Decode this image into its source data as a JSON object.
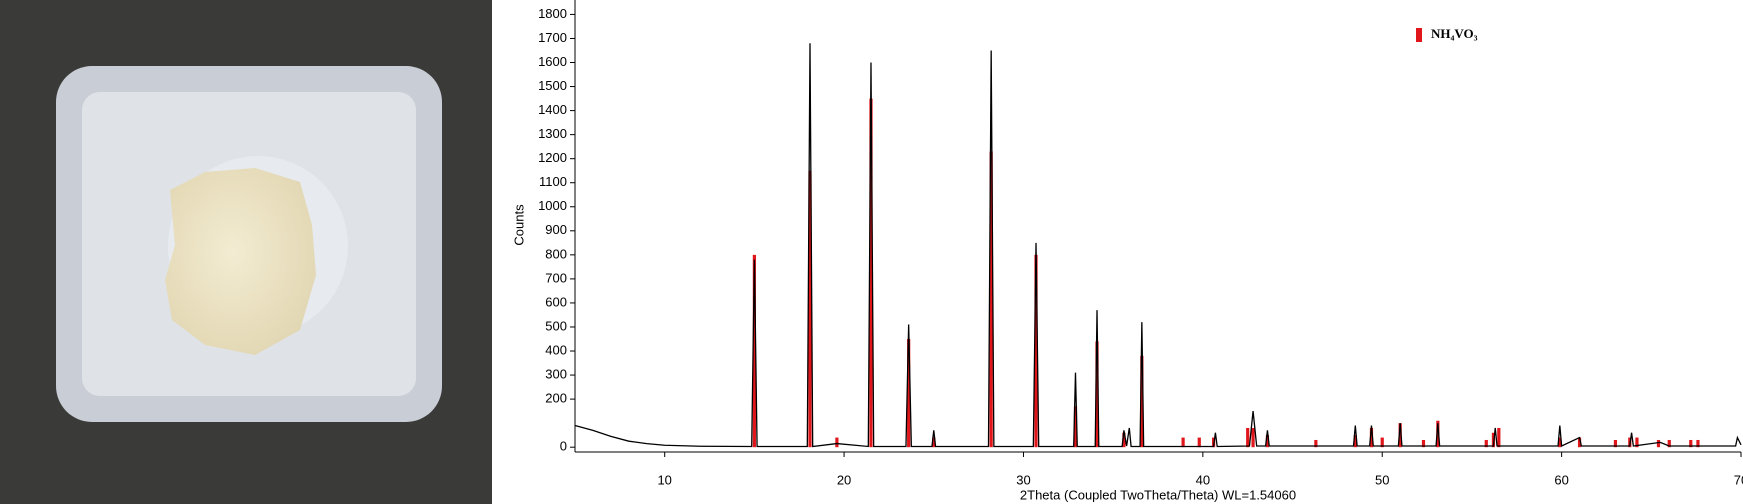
{
  "chart_data": {
    "type": "xrd",
    "xlabel": "2Theta (Coupled TwoTheta/Theta) WL=1.54060",
    "ylabel": "Counts",
    "xlim": [
      5,
      70
    ],
    "xticks": [
      10,
      20,
      30,
      40,
      50,
      60,
      70
    ],
    "ylim": [
      -20,
      1860
    ],
    "yticks": [
      0,
      200,
      300,
      400,
      500,
      600,
      700,
      800,
      900,
      1000,
      1100,
      1200,
      1300,
      1400,
      1500,
      1600,
      1700,
      1800
    ],
    "legend": "upper right",
    "series": [
      {
        "style": "line",
        "color": "#000000",
        "x": [
          5,
          6,
          7,
          8,
          9,
          10,
          12,
          14.85,
          15.0,
          15.15,
          17.95,
          18.1,
          18.25,
          19.6,
          21.35,
          21.5,
          21.65,
          23.45,
          23.6,
          23.75,
          24.9,
          25.0,
          25.1,
          28.05,
          28.2,
          28.35,
          30.55,
          30.7,
          30.85,
          32.8,
          32.9,
          33.0,
          34.0,
          34.1,
          34.2,
          35.5,
          35.6,
          35.75,
          35.9,
          36.0,
          36.5,
          36.6,
          36.7,
          40.6,
          40.7,
          40.8,
          42.6,
          42.8,
          43.0,
          43.5,
          43.6,
          43.7,
          48.4,
          48.5,
          48.6,
          49.3,
          49.4,
          49.5,
          50.9,
          51.0,
          51.1,
          53.0,
          53.1,
          53.2,
          56.2,
          56.3,
          56.4,
          59.8,
          59.9,
          60.0,
          61.0,
          61.1,
          63.8,
          63.9,
          64.0,
          65.5,
          66,
          69.7,
          69.8,
          70
        ],
        "values": [
          90,
          70,
          45,
          25,
          15,
          8,
          4,
          3,
          780,
          3,
          3,
          1680,
          3,
          15,
          3,
          1600,
          3,
          3,
          510,
          3,
          3,
          70,
          3,
          3,
          1650,
          3,
          3,
          850,
          3,
          3,
          310,
          3,
          3,
          570,
          3,
          3,
          70,
          5,
          80,
          3,
          3,
          520,
          3,
          3,
          60,
          3,
          5,
          150,
          5,
          5,
          70,
          5,
          5,
          90,
          5,
          5,
          90,
          5,
          5,
          100,
          5,
          5,
          100,
          5,
          5,
          80,
          5,
          5,
          90,
          5,
          40,
          5,
          5,
          60,
          5,
          20,
          5,
          5,
          40,
          10
        ]
      },
      {
        "style": "stick",
        "name": "NH₄VO₃",
        "color": "#e0161b",
        "x": [
          15.0,
          18.1,
          19.6,
          21.5,
          23.6,
          25.0,
          28.2,
          30.7,
          32.9,
          34.1,
          35.6,
          36.6,
          38.9,
          39.8,
          40.6,
          42.5,
          42.8,
          43.6,
          46.3,
          48.5,
          49.4,
          50.0,
          51.0,
          52.3,
          53.1,
          55.8,
          56.2,
          56.5,
          59.9,
          61.0,
          63.0,
          63.8,
          64.2,
          65.4,
          66.0,
          67.2,
          67.6
        ],
        "values": [
          800,
          1150,
          40,
          1450,
          450,
          40,
          1230,
          800,
          170,
          440,
          60,
          380,
          40,
          40,
          40,
          80,
          80,
          50,
          30,
          50,
          80,
          40,
          100,
          30,
          110,
          30,
          60,
          80,
          40,
          40,
          30,
          40,
          40,
          30,
          30,
          30,
          30
        ]
      }
    ]
  }
}
